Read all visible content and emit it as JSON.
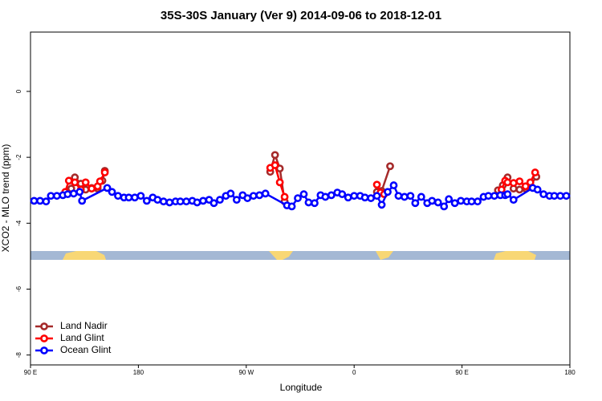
{
  "chart_data": {
    "type": "line",
    "title": "35S-30S January (Ver 9)   2014-09-06 to 2018-12-01",
    "x_label": "Longitude",
    "y_label": "XCO2 - MLO trend (ppm)",
    "xlim": [
      90,
      540
    ],
    "ylim": [
      -8.3,
      1.8
    ],
    "xticks": [
      {
        "value": 90,
        "label": "90 E"
      },
      180,
      {
        "value": 270,
        "label": "90 W"
      },
      {
        "value": 360,
        "label": "0"
      },
      {
        "value": 450,
        "label": "90 E"
      },
      {
        "value": 540,
        "label": "180"
      }
    ],
    "yticks": [
      0,
      -2,
      -4,
      -6,
      -8
    ],
    "legend": "bottom-left",
    "series": [
      {
        "name": "Land Nadir",
        "color": "#a52a2a",
        "x": [
          124,
          127,
          132,
          136,
          141,
          146,
          150,
          152,
          220,
          290,
          294,
          298,
          302,
          340,
          379,
          383,
          390,
          430,
          480,
          484,
          488,
          493,
          498,
          503,
          507,
          512
        ],
        "values": [
          -2.95,
          -2.61,
          -2.8,
          -2.98,
          -2.93,
          -2.95,
          -2.71,
          -2.41,
          null,
          -2.44,
          -1.93,
          -2.34,
          -3.34,
          null,
          -3.05,
          -3.02,
          -2.27,
          null,
          -3.0,
          -2.85,
          -2.61,
          -2.95,
          -2.98,
          -2.95,
          -2.85,
          -2.59
        ]
      },
      {
        "name": "Land Glint",
        "color": "#ff0000",
        "x": [
          119,
          122,
          127,
          132,
          136,
          141,
          146,
          148,
          152,
          220,
          290,
          294,
          298,
          302,
          340,
          379,
          382,
          385,
          430,
          483,
          486,
          488,
          493,
          498,
          503,
          507,
          511
        ],
        "values": [
          -3.05,
          -2.71,
          -2.76,
          -2.98,
          -2.76,
          -2.95,
          -2.88,
          -2.73,
          -2.46,
          null,
          -2.32,
          -2.24,
          -2.76,
          -3.2,
          null,
          -2.83,
          -3.07,
          -3.12,
          null,
          -2.98,
          -2.71,
          -2.76,
          -2.78,
          -2.73,
          -2.88,
          -2.76,
          -2.46
        ]
      },
      {
        "name": "Ocean Glint",
        "color": "#0000ff",
        "x": [
          93,
          98,
          103,
          107,
          112,
          117,
          121,
          126,
          131,
          133,
          154,
          158,
          163,
          168,
          172,
          177,
          182,
          187,
          192,
          196,
          201,
          206,
          211,
          215,
          220,
          225,
          229,
          234,
          239,
          243,
          248,
          253,
          257,
          262,
          267,
          271,
          276,
          281,
          286,
          304,
          308,
          313,
          318,
          322,
          327,
          332,
          336,
          341,
          346,
          350,
          355,
          360,
          365,
          369,
          374,
          379,
          383,
          388,
          393,
          397,
          402,
          407,
          411,
          416,
          421,
          425,
          430,
          435,
          439,
          444,
          449,
          454,
          458,
          463,
          468,
          472,
          477,
          482,
          486,
          488,
          493,
          509,
          513,
          518,
          523,
          527,
          532,
          537
        ],
        "values": [
          -3.32,
          -3.32,
          -3.34,
          -3.17,
          -3.17,
          -3.15,
          -3.12,
          -3.1,
          -3.05,
          -3.32,
          -2.93,
          -3.05,
          -3.17,
          -3.22,
          -3.22,
          -3.22,
          -3.17,
          -3.32,
          -3.22,
          -3.29,
          -3.34,
          -3.37,
          -3.34,
          -3.34,
          -3.34,
          -3.32,
          -3.37,
          -3.32,
          -3.29,
          -3.39,
          -3.29,
          -3.17,
          -3.1,
          -3.29,
          -3.15,
          -3.24,
          -3.17,
          -3.15,
          -3.1,
          -3.46,
          -3.49,
          -3.24,
          -3.12,
          -3.37,
          -3.39,
          -3.15,
          -3.2,
          -3.15,
          -3.07,
          -3.12,
          -3.22,
          -3.17,
          -3.17,
          -3.22,
          -3.24,
          -3.17,
          -3.44,
          -3.05,
          -2.85,
          -3.17,
          -3.2,
          -3.17,
          -3.39,
          -3.2,
          -3.39,
          -3.32,
          -3.37,
          -3.49,
          -3.27,
          -3.39,
          -3.32,
          -3.34,
          -3.34,
          -3.34,
          -3.2,
          -3.17,
          -3.17,
          -3.15,
          -3.15,
          -3.12,
          -3.29,
          -2.93,
          -2.98,
          -3.12,
          -3.17,
          -3.17,
          -3.17,
          -3.17
        ]
      }
    ]
  }
}
